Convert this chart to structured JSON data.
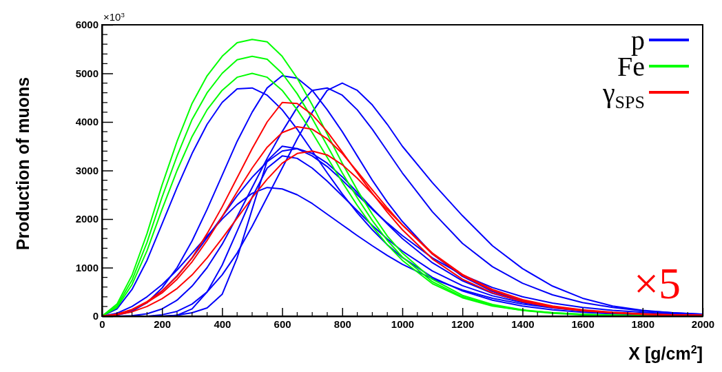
{
  "chart_data": {
    "type": "line",
    "xlabel": "X [g/cm$^{2}$]",
    "ylabel": "Production of muons",
    "annotations": [
      "×10$^{3}$",
      "×5"
    ],
    "x": [
      0,
      50,
      100,
      150,
      200,
      250,
      300,
      350,
      400,
      450,
      500,
      550,
      600,
      650,
      700,
      750,
      800,
      850,
      900,
      950,
      1000,
      1100,
      1200,
      1300,
      1400,
      1500,
      1600,
      1700,
      1800,
      1900,
      2000
    ],
    "xlim": [
      0,
      2000
    ],
    "xticks": [
      0,
      200,
      400,
      600,
      800,
      1000,
      1200,
      1400,
      1600,
      1800,
      2000
    ],
    "ylim": [
      0,
      6000
    ],
    "yticks": [
      0,
      1000,
      2000,
      3000,
      4000,
      5000,
      6000
    ],
    "legend": "top right",
    "grid": false,
    "marker": "none",
    "line_style": "solid",
    "series": [
      {
        "name": "p",
        "color": "#0000ff",
        "values": [
          0,
          150,
          550,
          1150,
          1900,
          2650,
          3350,
          3950,
          4400,
          4680,
          4700,
          4550,
          4250,
          3850,
          3400,
          2950,
          2520,
          2130,
          1780,
          1470,
          1210,
          800,
          520,
          330,
          210,
          130,
          80,
          50,
          30,
          20,
          10
        ]
      },
      {
        "color": "#0000fe",
        "values": [
          0,
          0,
          0,
          0,
          30,
          100,
          250,
          500,
          850,
          1300,
          1850,
          2450,
          3050,
          3650,
          4200,
          4650,
          4800,
          4650,
          4350,
          3950,
          3500,
          2750,
          2070,
          1450,
          980,
          620,
          370,
          210,
          120,
          70,
          40
        ]
      },
      {
        "color": "#0000fd",
        "values": [
          0,
          20,
          100,
          280,
          580,
          1000,
          1550,
          2200,
          2900,
          3600,
          4200,
          4700,
          4950,
          4900,
          4650,
          4250,
          3800,
          3300,
          2800,
          2350,
          1950,
          1280,
          820,
          510,
          310,
          190,
          110,
          70,
          40,
          20,
          10
        ]
      },
      {
        "color": "#0000fc",
        "values": [
          0,
          30,
          120,
          280,
          520,
          830,
          1200,
          1620,
          2050,
          2480,
          2860,
          3180,
          3400,
          3450,
          3350,
          3150,
          2870,
          2550,
          2220,
          1900,
          1600,
          1100,
          730,
          470,
          300,
          190,
          120,
          70,
          40,
          30,
          20
        ]
      },
      {
        "color": "#0000fb",
        "values": [
          0,
          0,
          0,
          0,
          0,
          20,
          150,
          500,
          1050,
          1750,
          2450,
          3050,
          3300,
          3250,
          3050,
          2780,
          2480,
          2170,
          1870,
          1590,
          1340,
          930,
          630,
          420,
          280,
          180,
          120,
          70,
          50,
          30,
          20
        ]
      },
      {
        "color": "#0000fa",
        "values": [
          0,
          60,
          200,
          400,
          650,
          950,
          1300,
          1650,
          2000,
          2300,
          2530,
          2650,
          2620,
          2500,
          2320,
          2100,
          1880,
          1660,
          1450,
          1250,
          1070,
          770,
          540,
          370,
          250,
          170,
          110,
          70,
          50,
          30,
          20
        ]
      },
      {
        "color": "#0000f9",
        "values": [
          0,
          0,
          0,
          0,
          0,
          20,
          70,
          170,
          450,
          1200,
          2200,
          3200,
          3500,
          3450,
          3300,
          3080,
          2800,
          2500,
          2200,
          1920,
          1660,
          1200,
          850,
          590,
          400,
          270,
          180,
          120,
          80,
          50,
          30
        ]
      },
      {
        "color": "#0000f8",
        "values": [
          0,
          0,
          10,
          50,
          150,
          330,
          620,
          1000,
          1480,
          2050,
          2650,
          3250,
          3800,
          4300,
          4650,
          4700,
          4550,
          4250,
          3850,
          3400,
          2950,
          2150,
          1500,
          1020,
          680,
          440,
          280,
          180,
          110,
          70,
          40
        ]
      },
      {
        "name": "Fe",
        "color": "#00ff00",
        "values": [
          0,
          250,
          840,
          1700,
          2700,
          3600,
          4380,
          4950,
          5350,
          5630,
          5700,
          5650,
          5350,
          4900,
          4350,
          3750,
          3150,
          2600,
          2100,
          1650,
          1300,
          760,
          430,
          240,
          130,
          70,
          40,
          20,
          10,
          10,
          0
        ]
      },
      {
        "color": "#00fe00",
        "values": [
          0,
          210,
          740,
          1520,
          2450,
          3300,
          4050,
          4600,
          5000,
          5280,
          5350,
          5290,
          5000,
          4580,
          4070,
          3510,
          2950,
          2440,
          1970,
          1560,
          1220,
          710,
          400,
          220,
          120,
          70,
          40,
          20,
          10,
          10,
          0
        ]
      },
      {
        "color": "#00fd00",
        "values": [
          0,
          180,
          650,
          1350,
          2200,
          3000,
          3700,
          4250,
          4650,
          4920,
          5000,
          4920,
          4650,
          4250,
          3780,
          3270,
          2760,
          2280,
          1850,
          1470,
          1150,
          670,
          380,
          210,
          120,
          60,
          30,
          20,
          10,
          10,
          0
        ]
      },
      {
        "name": "γ$_{SPS}$",
        "color": "#ff0000",
        "values": [
          0,
          40,
          130,
          280,
          480,
          760,
          1120,
          1560,
          2050,
          2560,
          3050,
          3480,
          3780,
          3900,
          3850,
          3650,
          3350,
          2980,
          2600,
          2230,
          1880,
          1280,
          840,
          530,
          330,
          200,
          120,
          70,
          40,
          30,
          20
        ]
      },
      {
        "color": "#fe0000",
        "values": [
          0,
          30,
          90,
          200,
          360,
          570,
          850,
          1200,
          1600,
          2020,
          2440,
          2820,
          3150,
          3350,
          3400,
          3320,
          3120,
          2840,
          2520,
          2190,
          1880,
          1300,
          860,
          550,
          340,
          210,
          130,
          80,
          50,
          30,
          20
        ]
      },
      {
        "color": "#fd0000",
        "values": [
          0,
          40,
          140,
          300,
          520,
          820,
          1200,
          1700,
          2250,
          2850,
          3450,
          4000,
          4400,
          4380,
          4150,
          3800,
          3380,
          2950,
          2530,
          2140,
          1780,
          1180,
          760,
          480,
          300,
          180,
          110,
          70,
          40,
          20,
          10
        ]
      }
    ]
  }
}
